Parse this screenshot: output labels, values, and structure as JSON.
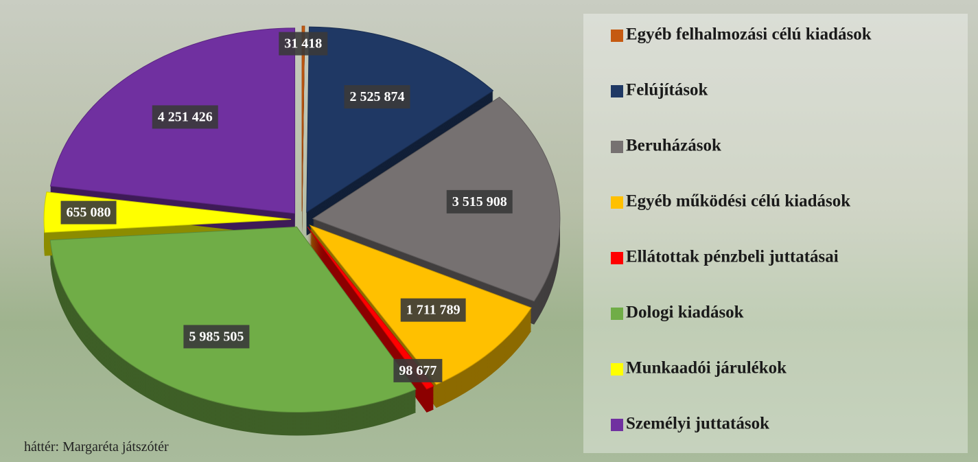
{
  "chart_data": {
    "type": "pie",
    "annotation": "háttér: Margaréta játszótér",
    "categories": [
      "Egyéb felhalmozási célú kiadások",
      "Felújítások",
      "Beruházások",
      "Egyéb működési célú kiadások",
      "Ellátottak pénzbeli juttatásai",
      "Dologi  kiadások",
      "Munkaadói járulékok",
      "Személyi juttatások"
    ],
    "values": [
      31418,
      2525874,
      3515908,
      1711789,
      98677,
      5985505,
      655080,
      4251426
    ],
    "value_labels": [
      "31 418",
      "2 525 874",
      "3 515 908",
      "1 711 789",
      "98 677",
      "5 985 505",
      "655 080",
      "4 251 426"
    ],
    "colors": [
      "#c55a11",
      "#1f3864",
      "#767171",
      "#ffc000",
      "#ff0000",
      "#70ad47",
      "#ffff00",
      "#7030a0"
    ],
    "legend": "right"
  }
}
